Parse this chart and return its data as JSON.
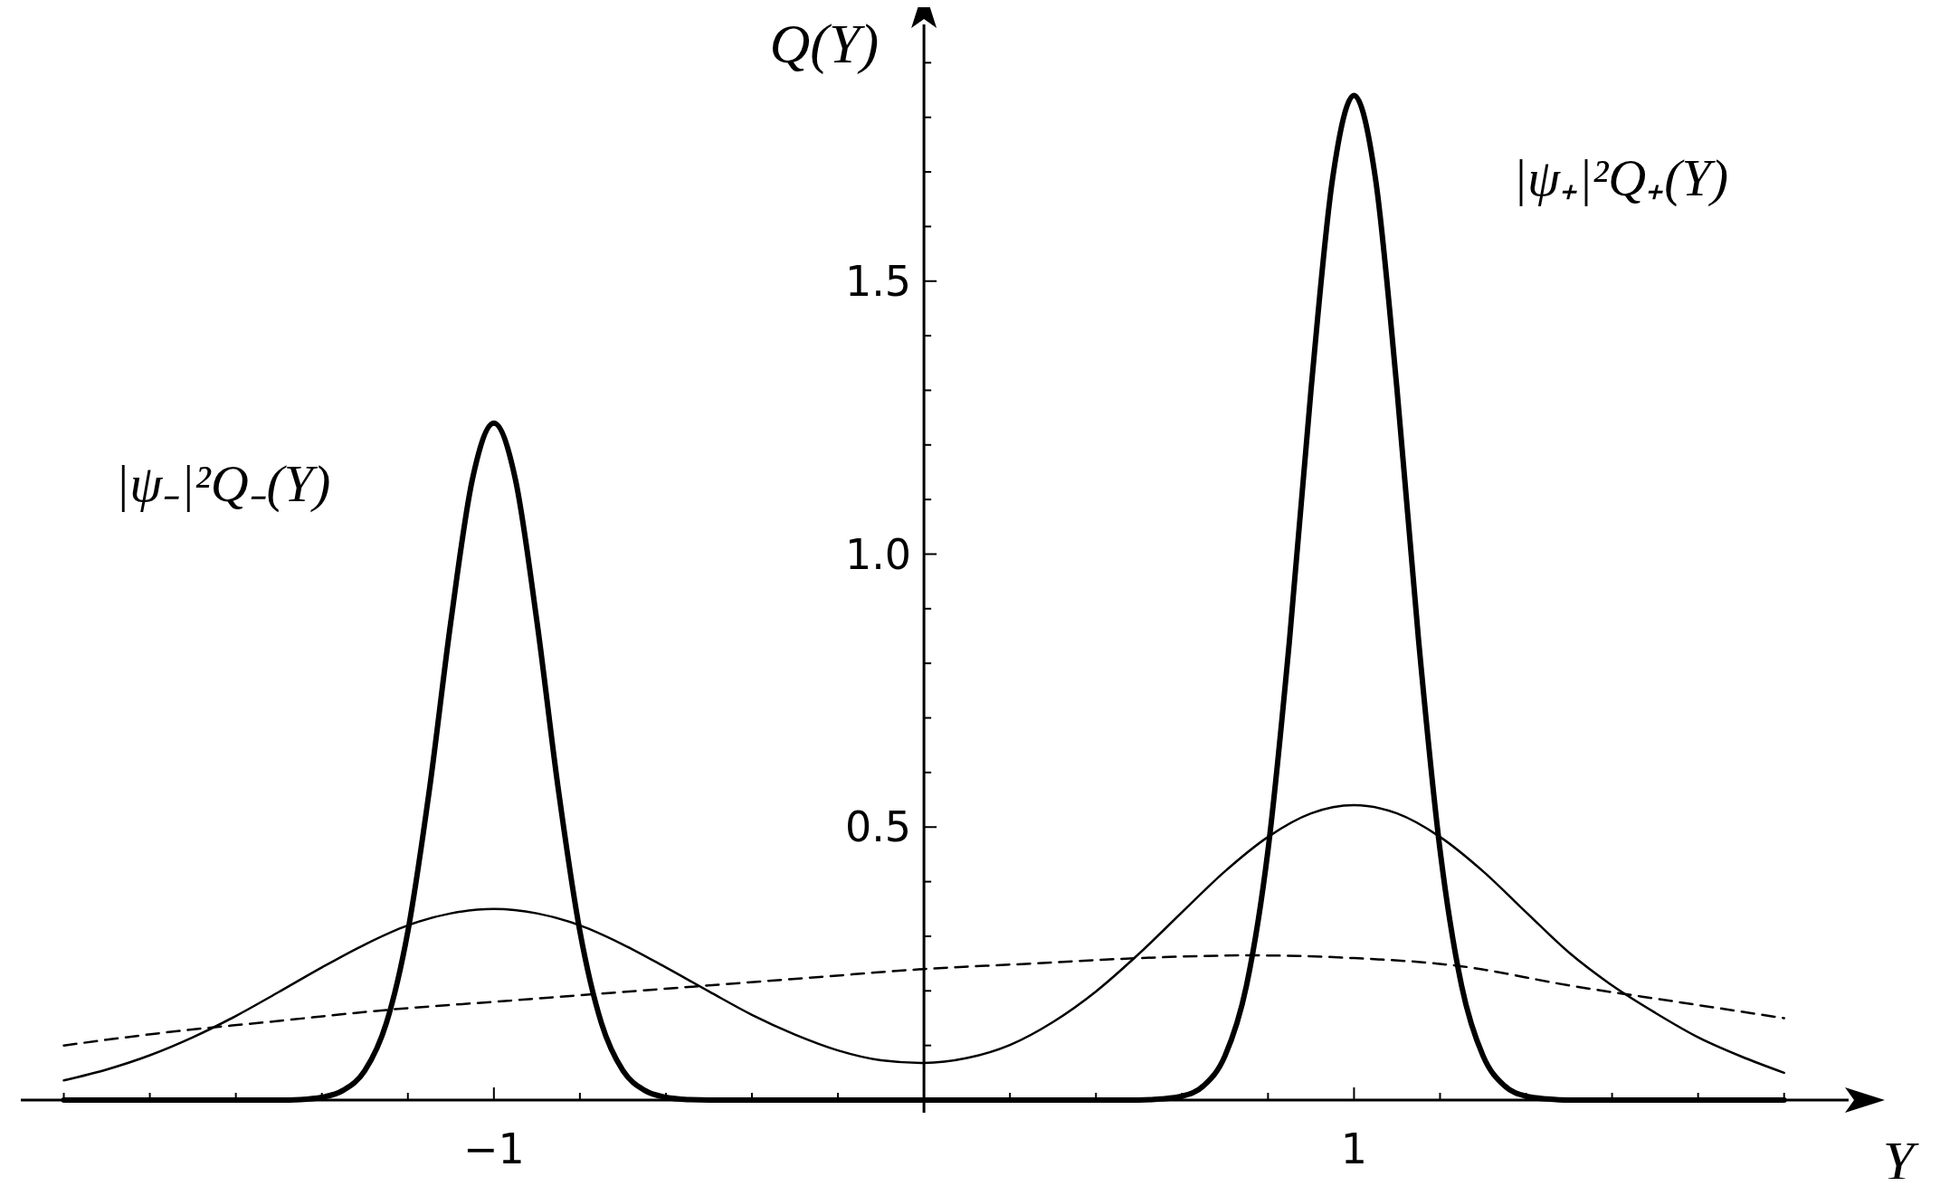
{
  "chart_data": {
    "type": "line",
    "xlabel": "Y",
    "ylabel": "Q(Y)",
    "xlim": [
      -2.1,
      2.15
    ],
    "ylim": [
      0,
      1.97
    ],
    "xticks": [
      {
        "value": -2,
        "label": null
      },
      {
        "value": -1.8,
        "label": null
      },
      {
        "value": -1.6,
        "label": null
      },
      {
        "value": -1.4,
        "label": null
      },
      {
        "value": -1.2,
        "label": null
      },
      -1,
      {
        "value": -0.8,
        "label": null
      },
      {
        "value": -0.6,
        "label": null
      },
      {
        "value": -0.4,
        "label": null
      },
      {
        "value": -0.2,
        "label": null
      },
      {
        "value": 0.2,
        "label": null
      },
      {
        "value": 0.4,
        "label": null
      },
      {
        "value": 0.6,
        "label": null
      },
      {
        "value": 0.8,
        "label": null
      },
      1,
      {
        "value": 1.2,
        "label": null
      },
      {
        "value": 1.4,
        "label": null
      },
      {
        "value": 1.6,
        "label": null
      },
      {
        "value": 1.8,
        "label": null
      },
      {
        "value": 2,
        "label": null
      }
    ],
    "yticks": [
      {
        "value": 0.1,
        "label": null
      },
      {
        "value": 0.2,
        "label": null
      },
      {
        "value": 0.3,
        "label": null
      },
      {
        "value": 0.4,
        "label": null
      },
      0.5,
      {
        "value": 0.6,
        "label": null
      },
      {
        "value": 0.7,
        "label": null
      },
      {
        "value": 0.8,
        "label": null
      },
      {
        "value": 0.9,
        "label": null
      },
      {
        "value": 1,
        "label": "1.0"
      },
      {
        "value": 1.1,
        "label": null
      },
      {
        "value": 1.2,
        "label": null
      },
      {
        "value": 1.3,
        "label": null
      },
      {
        "value": 1.4,
        "label": null
      },
      1.5,
      {
        "value": 1.6,
        "label": null
      },
      {
        "value": 1.7,
        "label": null
      },
      {
        "value": 1.8,
        "label": null
      },
      {
        "value": 1.9,
        "label": null
      }
    ],
    "grid": false,
    "series": [
      {
        "color": "#000000",
        "line_style": "solid",
        "x": [
          -2,
          -1.5,
          -1.45,
          -1.4,
          -1.35,
          -1.3,
          -1.25,
          -1.2,
          -1.15,
          -1.1,
          -1.05,
          -1,
          -0.95,
          -0.9,
          -0.85,
          -0.8,
          -0.75,
          -0.7,
          -0.65,
          -0.6,
          -0.55,
          -0.5,
          0,
          0.5,
          0.55,
          0.6,
          0.65,
          0.7,
          0.75,
          0.8,
          0.85,
          0.9,
          0.95,
          1,
          1.05,
          1.1,
          1.15,
          1.2,
          1.25,
          1.3,
          1.35,
          1.4,
          1.45,
          1.5,
          2
        ],
        "values": [
          0,
          0,
          0.001,
          0.005,
          0.018,
          0.054,
          0.141,
          0.309,
          0.568,
          0.877,
          1.137,
          1.24,
          1.137,
          0.877,
          0.568,
          0.309,
          0.141,
          0.054,
          0.018,
          0.005,
          0.001,
          0,
          0,
          0,
          0.002,
          0.007,
          0.026,
          0.081,
          0.21,
          0.458,
          0.843,
          1.301,
          1.687,
          1.84,
          1.687,
          1.301,
          0.843,
          0.458,
          0.21,
          0.081,
          0.026,
          0.007,
          0.002,
          0,
          0
        ]
      },
      {
        "color": "#000000",
        "line_style": "solid",
        "x": [
          -2,
          -1.9,
          -1.8,
          -1.7,
          -1.6,
          -1.5,
          -1.4,
          -1.3,
          -1.2,
          -1.1,
          -1,
          -0.9,
          -0.8,
          -0.7,
          -0.6,
          -0.5,
          -0.4,
          -0.3,
          -0.2,
          -0.1,
          0,
          0.1,
          0.2,
          0.3,
          0.4,
          0.5,
          0.6,
          0.7,
          0.8,
          0.9,
          1,
          1.1,
          1.2,
          1.3,
          1.4,
          1.5,
          1.6,
          1.7,
          1.8,
          1.9,
          2
        ],
        "values": [
          0.036,
          0.056,
          0.082,
          0.115,
          0.154,
          0.198,
          0.243,
          0.285,
          0.32,
          0.342,
          0.35,
          0.342,
          0.32,
          0.285,
          0.243,
          0.199,
          0.156,
          0.12,
          0.091,
          0.073,
          0.068,
          0.077,
          0.101,
          0.143,
          0.199,
          0.268,
          0.344,
          0.419,
          0.482,
          0.525,
          0.54,
          0.525,
          0.482,
          0.419,
          0.344,
          0.27,
          0.21,
          0.16,
          0.115,
          0.08,
          0.05
        ]
      },
      {
        "color": "#000000",
        "line_style": "dashed",
        "x": [
          -2,
          -1.75,
          -1.5,
          -1.25,
          -1,
          -0.75,
          -0.5,
          -0.25,
          0,
          0.25,
          0.5,
          0.75,
          1,
          1.25,
          1.5,
          1.75,
          2
        ],
        "values": [
          0.1,
          0.125,
          0.145,
          0.165,
          0.18,
          0.195,
          0.21,
          0.225,
          0.24,
          0.25,
          0.26,
          0.265,
          0.26,
          0.245,
          0.21,
          0.18,
          0.15
        ]
      }
    ],
    "annotations": [
      "|ψ₋|²Q₋(Y)",
      "|ψ₊|²Q₊(Y)"
    ]
  }
}
